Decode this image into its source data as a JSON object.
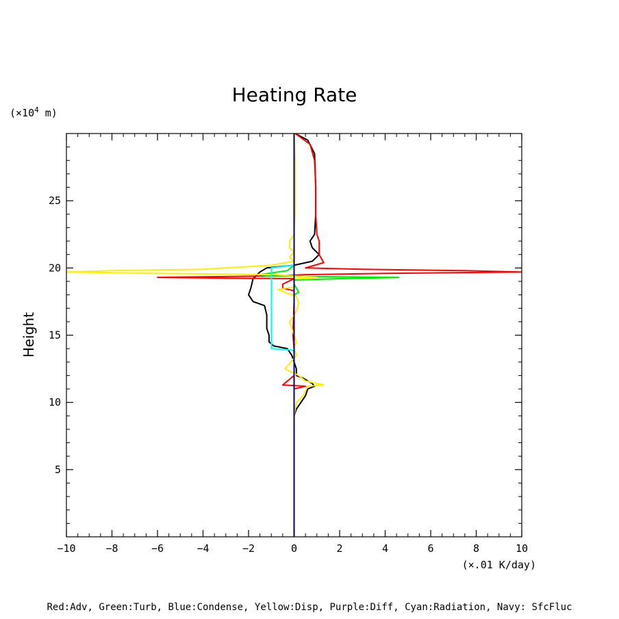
{
  "chart_data": {
    "type": "line",
    "title": "Heating Rate",
    "ylabel": "Height",
    "y_unit_prefix": "(×10",
    "y_unit_exp": "4",
    "y_unit_suffix": " m)",
    "x_unit": "(×.01 K/day)",
    "legend_text": "Red:Adv, Green:Turb, Blue:Condense, Yellow:Disp, Purple:Diff, Cyan:Radiation, Navy: SfcFluc",
    "xlim": [
      -10,
      10
    ],
    "ylim": [
      0,
      30
    ],
    "x_ticks": [
      -10,
      -8,
      -6,
      -4,
      -2,
      0,
      2,
      4,
      6,
      8,
      10
    ],
    "x_tick_labels": [
      "−10",
      "−8",
      "−6",
      "−4",
      "−2",
      "0",
      "2",
      "4",
      "6",
      "8",
      "10"
    ],
    "y_ticks": [
      5,
      10,
      15,
      20,
      25
    ],
    "y_tick_labels": [
      "5",
      "10",
      "15",
      "20",
      "25"
    ],
    "series": [
      {
        "color": "#000000",
        "points": [
          [
            0.05,
            30
          ],
          [
            0.6,
            29.5
          ],
          [
            0.9,
            28.5
          ],
          [
            0.95,
            26
          ],
          [
            0.95,
            24
          ],
          [
            0.9,
            22.5
          ],
          [
            0.7,
            22
          ],
          [
            0.8,
            21.5
          ],
          [
            1.1,
            21
          ],
          [
            0.8,
            20.5
          ],
          [
            0.0,
            20.2
          ],
          [
            -1.2,
            20
          ],
          [
            -1.5,
            19.7
          ],
          [
            -1.8,
            19.2
          ],
          [
            -1.9,
            18.5
          ],
          [
            -2.0,
            18
          ],
          [
            -1.8,
            17.5
          ],
          [
            -1.3,
            17.2
          ],
          [
            -1.2,
            16.5
          ],
          [
            -1.2,
            15.5
          ],
          [
            -1.1,
            15
          ],
          [
            -1.1,
            14.5
          ],
          [
            -0.9,
            14.2
          ],
          [
            -0.3,
            14
          ],
          [
            -0.1,
            13.5
          ],
          [
            0.1,
            12.5
          ],
          [
            0.1,
            12
          ],
          [
            0.4,
            11.8
          ],
          [
            0.8,
            11.4
          ],
          [
            0.9,
            11.2
          ],
          [
            0.6,
            11
          ],
          [
            0.5,
            10.5
          ],
          [
            0.3,
            10
          ],
          [
            0.1,
            9.5
          ],
          [
            0,
            9
          ],
          [
            0,
            5
          ],
          [
            0,
            2
          ]
        ]
      },
      {
        "color": "#ff0000",
        "points": [
          [
            0.05,
            30
          ],
          [
            0.7,
            29.2
          ],
          [
            0.9,
            28
          ],
          [
            0.95,
            26
          ],
          [
            0.95,
            24
          ],
          [
            1.0,
            22.5
          ],
          [
            1.1,
            22
          ],
          [
            1.1,
            21
          ],
          [
            1.3,
            20.4
          ],
          [
            0.5,
            20
          ],
          [
            3,
            19.9
          ],
          [
            7.5,
            19.8
          ],
          [
            10,
            19.7
          ],
          [
            4,
            19.6
          ],
          [
            0.5,
            19.5
          ],
          [
            -1,
            19.4
          ],
          [
            -6,
            19.3
          ],
          [
            -3,
            19.25
          ],
          [
            0,
            19.2
          ],
          [
            -0.5,
            18.8
          ],
          [
            -0.5,
            18.5
          ],
          [
            0,
            18.3
          ],
          [
            0,
            17.5
          ],
          [
            -0.05,
            15
          ],
          [
            0,
            14
          ],
          [
            0,
            12
          ],
          [
            -0.5,
            11.3
          ],
          [
            0.5,
            11.2
          ],
          [
            0,
            11
          ],
          [
            0,
            10
          ],
          [
            0,
            7
          ],
          [
            0,
            2
          ]
        ]
      },
      {
        "color": "#00ee00",
        "points": [
          [
            0,
            20.2
          ],
          [
            -0.3,
            19.8
          ],
          [
            -1.5,
            19.5
          ],
          [
            -1.2,
            19.4
          ],
          [
            4.6,
            19.3
          ],
          [
            2,
            19.2
          ],
          [
            0,
            19.1
          ],
          [
            0,
            18.8
          ],
          [
            0.2,
            18.2
          ],
          [
            0,
            18
          ],
          [
            0,
            14
          ],
          [
            0,
            2
          ]
        ]
      },
      {
        "color": "#ffee00",
        "points": [
          [
            0,
            30
          ],
          [
            0.05,
            28
          ],
          [
            0.05,
            24
          ],
          [
            0,
            22.5
          ],
          [
            -0.2,
            22
          ],
          [
            -0.2,
            21.5
          ],
          [
            0,
            21.2
          ],
          [
            -0.2,
            20.8
          ],
          [
            0,
            20.5
          ],
          [
            -1,
            20.2
          ],
          [
            -3,
            20.0
          ],
          [
            -4,
            19.9
          ],
          [
            -8,
            19.8
          ],
          [
            -10,
            19.7
          ],
          [
            -6,
            19.6
          ],
          [
            -0.8,
            19.5
          ],
          [
            0,
            19.4
          ],
          [
            1,
            19.3
          ],
          [
            0,
            19.2
          ],
          [
            0,
            18.6
          ],
          [
            -0.7,
            18.4
          ],
          [
            -0.3,
            18.1
          ],
          [
            0.1,
            17.9
          ],
          [
            0.2,
            17.4
          ],
          [
            0.1,
            16.8
          ],
          [
            -0.2,
            16
          ],
          [
            0,
            15
          ],
          [
            0.1,
            14.5
          ],
          [
            0,
            14
          ],
          [
            0.1,
            13.5
          ],
          [
            -0.4,
            12.5
          ],
          [
            0.2,
            12
          ],
          [
            0.5,
            11.6
          ],
          [
            1.3,
            11.3
          ],
          [
            0.6,
            11.2
          ],
          [
            0.4,
            10.5
          ],
          [
            0.1,
            10
          ],
          [
            0,
            9
          ],
          [
            0,
            2
          ]
        ]
      },
      {
        "color": "#00ffff",
        "points": [
          [
            0,
            20.2
          ],
          [
            -1,
            20.0
          ],
          [
            -1,
            14.0
          ],
          [
            -0.1,
            13.9
          ],
          [
            0,
            13.8
          ]
        ]
      },
      {
        "color": "#0000cc",
        "points": [
          [
            0,
            29.8
          ],
          [
            0,
            2
          ]
        ]
      },
      {
        "color": "#000080",
        "points": [
          [
            0,
            30
          ],
          [
            0,
            0
          ]
        ]
      }
    ]
  }
}
